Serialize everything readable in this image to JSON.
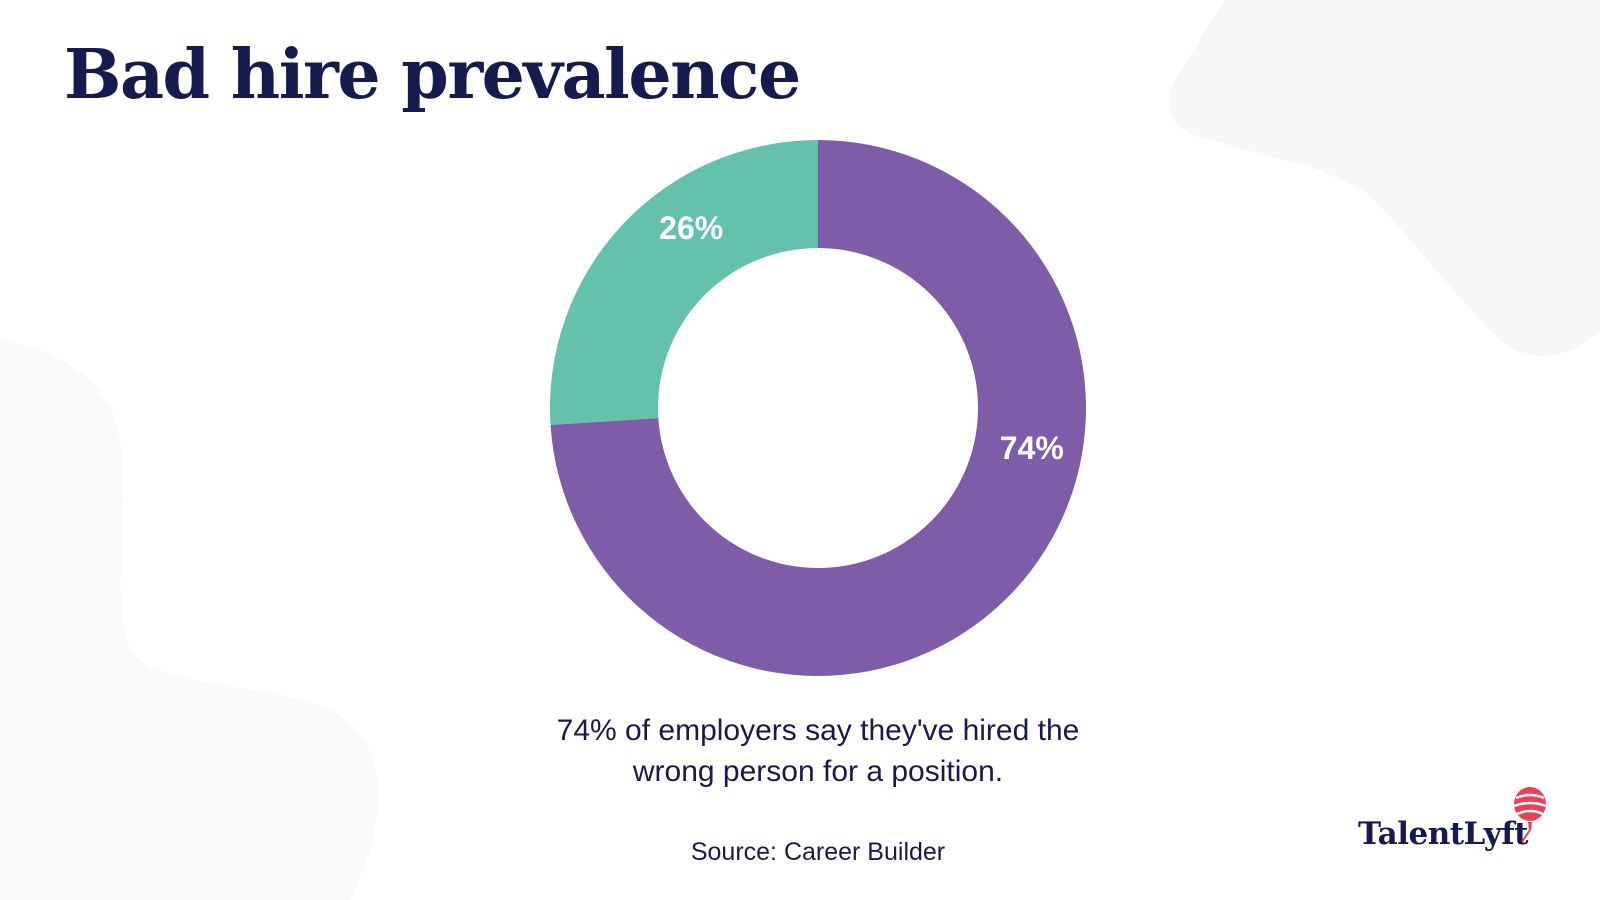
{
  "title": "Bad hire prevalence",
  "caption_line1": "74% of employers say they've hired the",
  "caption_line2": "wrong person for a position.",
  "source": "Source: Career Builder",
  "logo": {
    "text": "TalentLyft",
    "icon": "balloon-icon",
    "icon_color": "#e8415a"
  },
  "colors": {
    "title": "#161b4f",
    "purple": "#7e5ca7",
    "teal": "#63c1ac",
    "background_shape": "#f7f7f7"
  },
  "chart_data": {
    "type": "pie",
    "donut": true,
    "slices": [
      {
        "label": "74%",
        "value": 74,
        "color": "#7e5ca7"
      },
      {
        "label": "26%",
        "value": 26,
        "color": "#63c1ac"
      }
    ]
  }
}
